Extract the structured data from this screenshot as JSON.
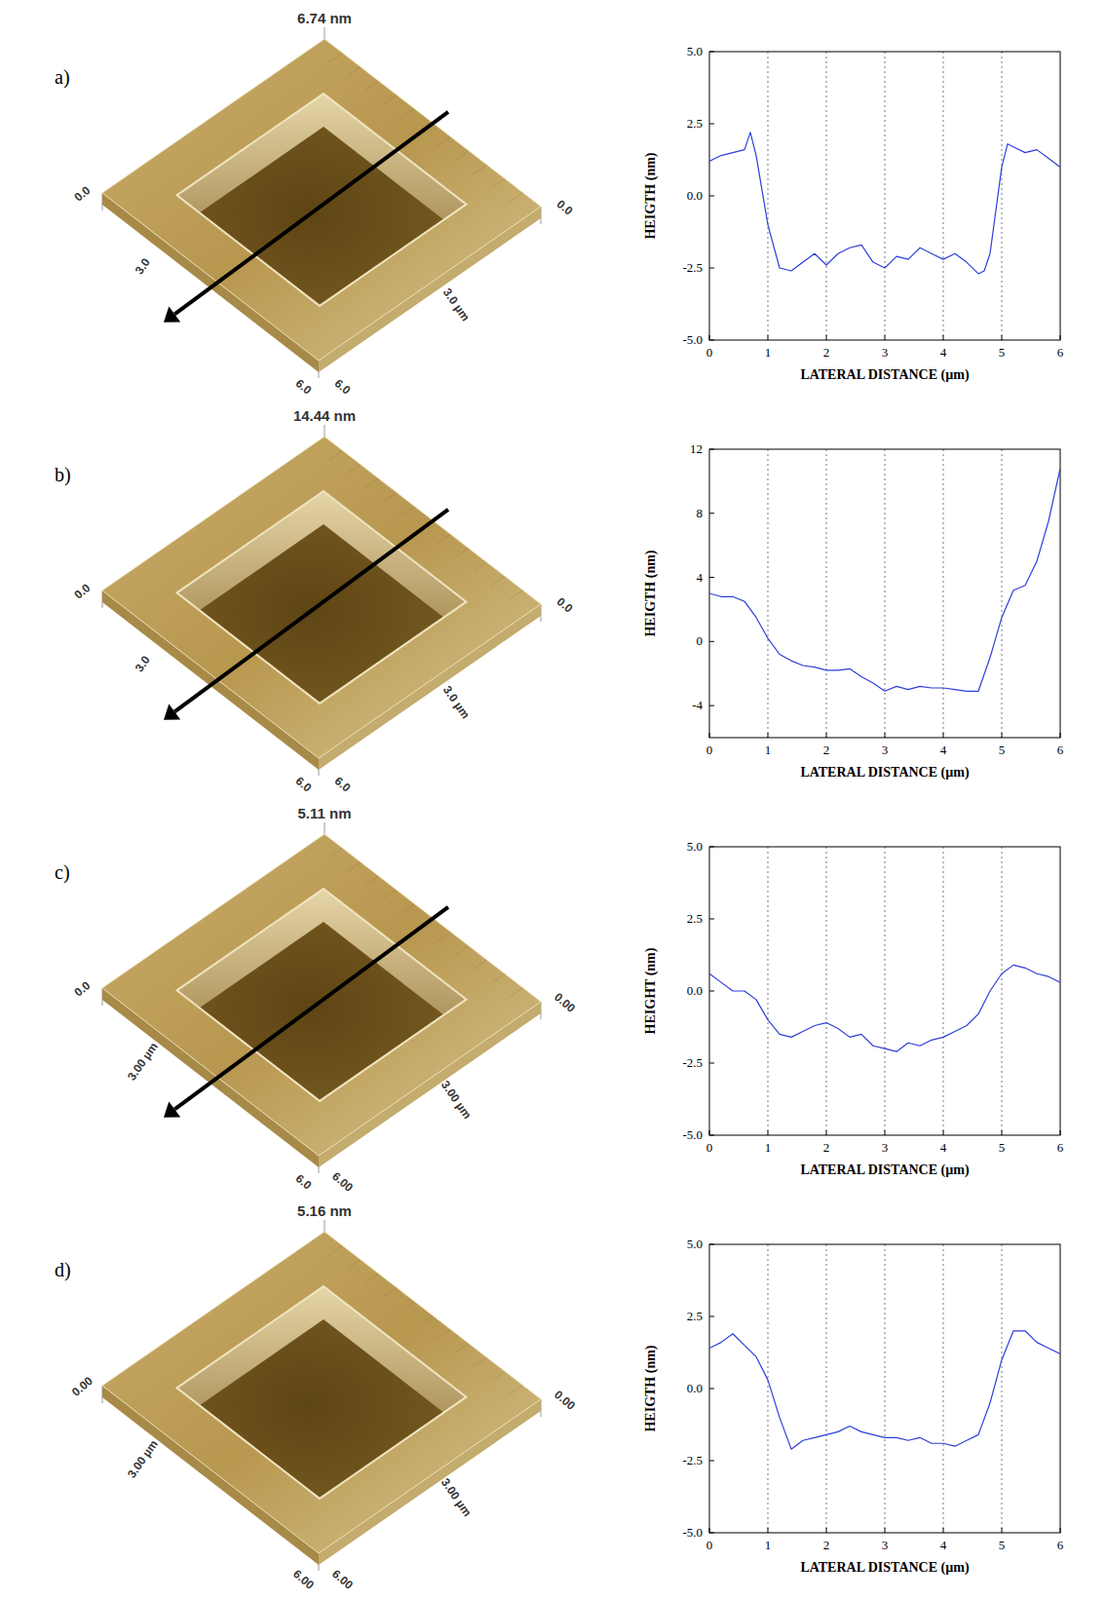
{
  "chart_data": [
    {
      "type": "line",
      "panel": "a)",
      "color": "#2f3fd8",
      "annotations": [
        "6.74 nm",
        "0.0",
        "0.0",
        "3.0 µm",
        "6.0",
        "6.0",
        "3.0"
      ],
      "x_label": "LATERAL DISTANCE (µm)",
      "y_label": "HEIGTH (nm)",
      "xlim": [
        0,
        6
      ],
      "ylim": [
        -5,
        5
      ],
      "xticks": [
        0,
        1,
        2,
        3,
        4,
        5,
        6
      ],
      "yticks": [
        {
          "value": -5,
          "label": "-5.0"
        },
        {
          "value": -2.5,
          "label": "-2.5"
        },
        {
          "value": 0,
          "label": "0.0"
        },
        {
          "value": 2.5,
          "label": "2.5"
        },
        {
          "value": 5,
          "label": "5.0"
        }
      ],
      "grid": true,
      "x": [
        0,
        0.2,
        0.4,
        0.6,
        0.7,
        0.8,
        1.0,
        1.2,
        1.4,
        1.6,
        1.8,
        2.0,
        2.2,
        2.4,
        2.6,
        2.8,
        3.0,
        3.2,
        3.4,
        3.6,
        3.8,
        4.0,
        4.2,
        4.4,
        4.6,
        4.7,
        4.8,
        5.0,
        5.1,
        5.2,
        5.4,
        5.6,
        5.8,
        6.0
      ],
      "values": [
        1.2,
        1.4,
        1.5,
        1.6,
        2.2,
        1.4,
        -1.0,
        -2.5,
        -2.6,
        -2.3,
        -2.0,
        -2.4,
        -2.0,
        -1.8,
        -1.7,
        -2.3,
        -2.5,
        -2.1,
        -2.2,
        -1.8,
        -2.0,
        -2.2,
        -2.0,
        -2.3,
        -2.7,
        -2.6,
        -2.0,
        1.0,
        1.8,
        1.7,
        1.5,
        1.6,
        1.3,
        1.0
      ]
    },
    {
      "type": "line",
      "panel": "b)",
      "color": "#2f3fd8",
      "annotations": [
        "14.44 nm",
        "0.0",
        "0.0",
        "3.0 µm",
        "6.0",
        "6.0",
        "3.0"
      ],
      "x_label": "LATERAL DISTANCE (µm)",
      "y_label": "HEIGTH (nm)",
      "xlim": [
        0,
        6
      ],
      "ylim": [
        -6,
        12
      ],
      "xticks": [
        0,
        1,
        2,
        3,
        4,
        5,
        6
      ],
      "yticks": [
        -4,
        0,
        4,
        8,
        12
      ],
      "grid": true,
      "x": [
        0,
        0.2,
        0.4,
        0.6,
        0.8,
        1.0,
        1.2,
        1.4,
        1.6,
        1.8,
        2.0,
        2.2,
        2.4,
        2.6,
        2.8,
        3.0,
        3.2,
        3.4,
        3.6,
        3.8,
        4.0,
        4.2,
        4.4,
        4.6,
        4.8,
        5.0,
        5.2,
        5.4,
        5.6,
        5.8,
        6.0
      ],
      "values": [
        3.0,
        2.8,
        2.8,
        2.5,
        1.5,
        0.2,
        -0.8,
        -1.2,
        -1.5,
        -1.6,
        -1.8,
        -1.8,
        -1.7,
        -2.2,
        -2.6,
        -3.1,
        -2.8,
        -3.0,
        -2.8,
        -2.9,
        -2.9,
        -3.0,
        -3.1,
        -3.1,
        -1.0,
        1.5,
        3.2,
        3.5,
        5.0,
        7.5,
        10.8
      ]
    },
    {
      "type": "line",
      "panel": "c)",
      "color": "#2f3fd8",
      "annotations": [
        "5.11 nm",
        "0.0",
        "0.00",
        "3.00 µm",
        "6.0",
        "6.00",
        "3.00 µm"
      ],
      "x_label": "LATERAL DISTANCE (µm)",
      "y_label": "HEIGHT (nm)",
      "xlim": [
        0,
        6
      ],
      "ylim": [
        -5,
        5
      ],
      "xticks": [
        0,
        1,
        2,
        3,
        4,
        5,
        6
      ],
      "yticks": [
        {
          "value": -5,
          "label": "-5.0"
        },
        {
          "value": -2.5,
          "label": "-2.5"
        },
        {
          "value": 0,
          "label": "0.0"
        },
        {
          "value": 2.5,
          "label": "2.5"
        },
        {
          "value": 5,
          "label": "5.0"
        }
      ],
      "grid": true,
      "x": [
        0,
        0.2,
        0.4,
        0.6,
        0.8,
        1.0,
        1.2,
        1.4,
        1.6,
        1.8,
        2.0,
        2.2,
        2.4,
        2.6,
        2.8,
        3.0,
        3.2,
        3.4,
        3.6,
        3.8,
        4.0,
        4.2,
        4.4,
        4.6,
        4.8,
        5.0,
        5.2,
        5.4,
        5.6,
        5.8,
        6.0
      ],
      "values": [
        0.6,
        0.3,
        0.0,
        0.0,
        -0.3,
        -1.0,
        -1.5,
        -1.6,
        -1.4,
        -1.2,
        -1.1,
        -1.3,
        -1.6,
        -1.5,
        -1.9,
        -2.0,
        -2.1,
        -1.8,
        -1.9,
        -1.7,
        -1.6,
        -1.4,
        -1.2,
        -0.8,
        0.0,
        0.6,
        0.9,
        0.8,
        0.6,
        0.5,
        0.3
      ]
    },
    {
      "type": "line",
      "panel": "d)",
      "color": "#2f3fd8",
      "annotations": [
        "5.16 nm",
        "0.00",
        "0.00",
        "3.00 µm",
        "6.00",
        "6.00",
        "3.00 µm"
      ],
      "x_label": "LATERAL DISTANCE (µm)",
      "y_label": "HEIGTH (nm)",
      "xlim": [
        0,
        6
      ],
      "ylim": [
        -5,
        5
      ],
      "xticks": [
        0,
        1,
        2,
        3,
        4,
        5,
        6
      ],
      "yticks": [
        {
          "value": -5,
          "label": "-5.0"
        },
        {
          "value": -2.5,
          "label": "-2.5"
        },
        {
          "value": 0,
          "label": "0.0"
        },
        {
          "value": 2.5,
          "label": "2.5"
        },
        {
          "value": 5,
          "label": "5.0"
        }
      ],
      "grid": true,
      "x": [
        0,
        0.2,
        0.4,
        0.6,
        0.8,
        1.0,
        1.2,
        1.4,
        1.6,
        1.8,
        2.0,
        2.2,
        2.4,
        2.6,
        2.8,
        3.0,
        3.2,
        3.4,
        3.6,
        3.8,
        4.0,
        4.2,
        4.4,
        4.6,
        4.8,
        5.0,
        5.2,
        5.4,
        5.6,
        5.8,
        6.0
      ],
      "values": [
        1.4,
        1.6,
        1.9,
        1.5,
        1.1,
        0.3,
        -1.0,
        -2.1,
        -1.8,
        -1.7,
        -1.6,
        -1.5,
        -1.3,
        -1.5,
        -1.6,
        -1.7,
        -1.7,
        -1.8,
        -1.7,
        -1.9,
        -1.9,
        -2.0,
        -1.8,
        -1.6,
        -0.5,
        1.0,
        2.0,
        2.0,
        1.6,
        1.4,
        1.2
      ]
    }
  ]
}
